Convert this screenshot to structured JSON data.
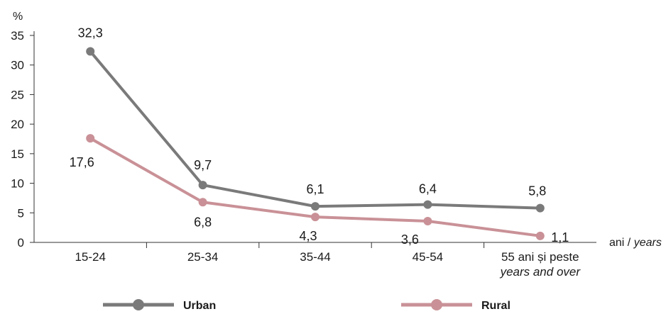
{
  "chart_data": {
    "type": "line",
    "ylabel": "%",
    "xlabel": "ani / years",
    "xlabel_parts": {
      "ro": "ani",
      "sep": " / ",
      "en": "years"
    },
    "ylim": [
      0,
      35
    ],
    "y_ticks": [
      0,
      5,
      10,
      15,
      20,
      25,
      30,
      35
    ],
    "categories": [
      {
        "line1": "15-24",
        "line2": ""
      },
      {
        "line1": "25-34",
        "line2": ""
      },
      {
        "line1": "35-44",
        "line2": ""
      },
      {
        "line1": "45-54",
        "line2": ""
      },
      {
        "line1": "55 ani și peste",
        "line2": "years and over"
      }
    ],
    "series": [
      {
        "name": "Urban",
        "color": "#7a7a7a",
        "values": [
          32.3,
          9.7,
          6.1,
          6.4,
          5.8
        ],
        "labels": [
          "32,3",
          "9,7",
          "6,1",
          "6,4",
          "5,8"
        ]
      },
      {
        "name": "Rural",
        "color": "#c99197",
        "values": [
          17.6,
          6.8,
          4.3,
          3.6,
          1.1
        ],
        "labels": [
          "17,6",
          "6,8",
          "4,3",
          "3,6",
          "1,1"
        ]
      }
    ],
    "grid": false,
    "legend_position": "bottom"
  }
}
